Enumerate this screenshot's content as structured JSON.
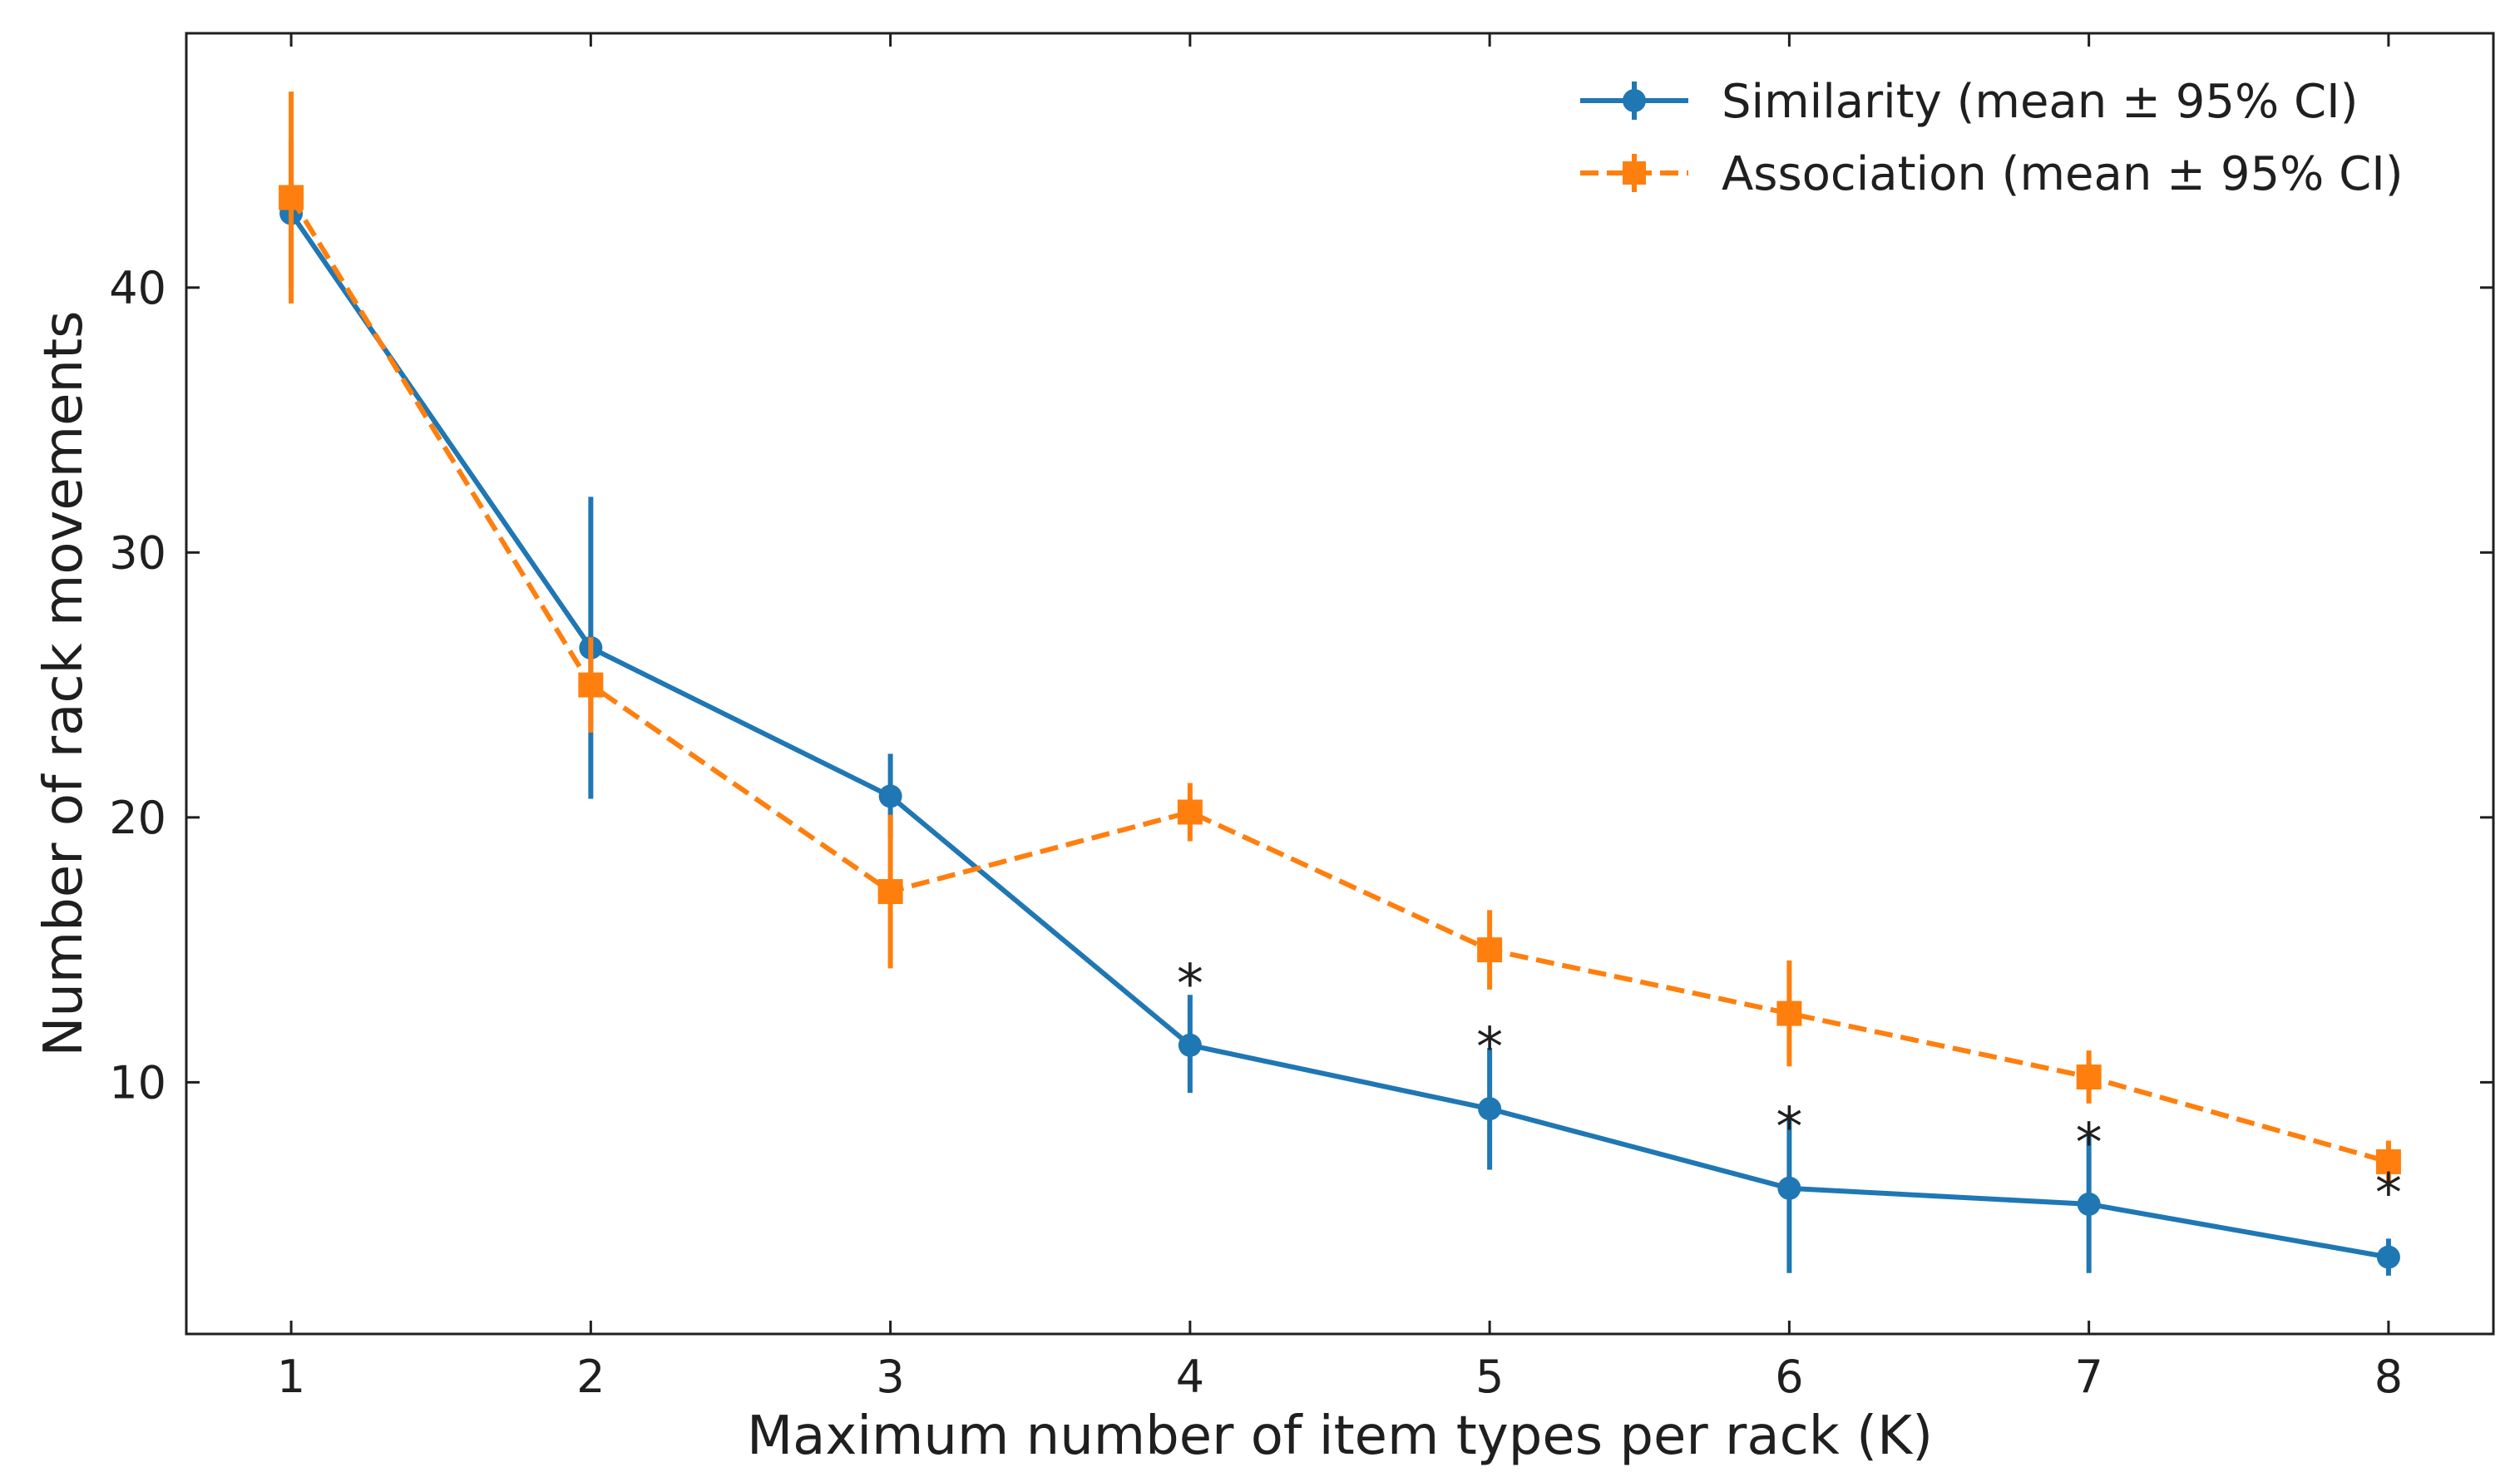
{
  "chart_data": {
    "type": "line",
    "title": "",
    "xlabel": "Maximum number of item types per rack (K)",
    "ylabel": "Number of rack movements",
    "xlim": [
      0.65,
      8.35
    ],
    "ylim": [
      0.5,
      49.6
    ],
    "xticks": [
      1,
      2,
      3,
      4,
      5,
      6,
      7,
      8
    ],
    "yticks": [
      10,
      20,
      30,
      40
    ],
    "grid": false,
    "legend_position": "top-right",
    "x": [
      1,
      2,
      3,
      4,
      5,
      6,
      7,
      8
    ],
    "series": [
      {
        "name": "Similarity (mean ± 95% CI)",
        "color": "#1f77b4",
        "marker": "circle",
        "linestyle": "solid",
        "values": [
          42.8,
          26.4,
          20.8,
          11.4,
          9.0,
          6.0,
          5.4,
          3.4
        ],
        "ci_low": [
          40.0,
          20.7,
          19.2,
          9.6,
          6.7,
          2.8,
          2.8,
          2.7
        ],
        "ci_high": [
          45.6,
          32.1,
          22.4,
          13.3,
          11.3,
          8.8,
          8.0,
          4.1
        ]
      },
      {
        "name": "Association (mean ± 95% CI)",
        "color": "#ff7f0e",
        "marker": "square",
        "linestyle": "dashed",
        "values": [
          43.4,
          25.0,
          17.2,
          20.2,
          15.0,
          12.6,
          10.2,
          7.0
        ],
        "ci_low": [
          39.4,
          23.2,
          14.3,
          19.1,
          13.5,
          10.6,
          9.2,
          6.2
        ],
        "ci_high": [
          47.4,
          26.8,
          20.1,
          21.3,
          16.5,
          14.6,
          11.2,
          7.8
        ]
      }
    ],
    "annotations": [
      {
        "text": "*",
        "x": 4,
        "y": 14.1
      },
      {
        "text": "*",
        "x": 5,
        "y": 11.7
      },
      {
        "text": "*",
        "x": 6,
        "y": 8.7
      },
      {
        "text": "*",
        "x": 7,
        "y": 8.1
      },
      {
        "text": "*",
        "x": 8,
        "y": 6.2
      }
    ]
  }
}
